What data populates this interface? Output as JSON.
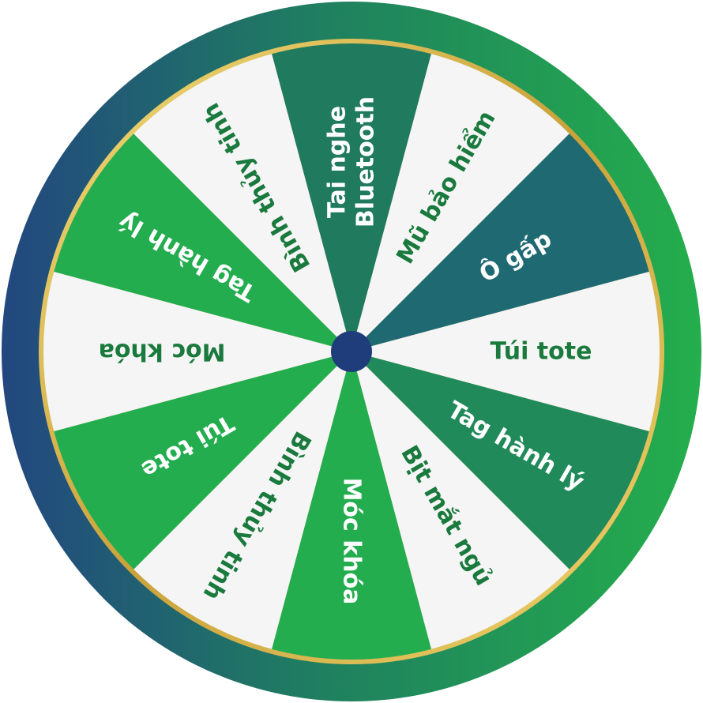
{
  "wheel": {
    "segments": [
      {
        "label": [
          "Tai nghe",
          "Bluetooth"
        ],
        "fill": "#1f7a5e",
        "text_color": "#ffffff"
      },
      {
        "label": [
          "Mũ bảo hiểm"
        ],
        "fill": "#f5f5f5",
        "text_color": "#1a7a3d"
      },
      {
        "label": [
          "Ô gấp"
        ],
        "fill": "#1f6a72",
        "text_color": "#ffffff"
      },
      {
        "label": [
          "Túi tote"
        ],
        "fill": "#f5f5f5",
        "text_color": "#1a7a3d"
      },
      {
        "label": [
          "Tag hành lý"
        ],
        "fill": "#218a5a",
        "text_color": "#ffffff"
      },
      {
        "label": [
          "Bịt mắt ngủ"
        ],
        "fill": "#f5f5f5",
        "text_color": "#1a7a3d"
      },
      {
        "label": [
          "Móc khóa"
        ],
        "fill": "#23ad4f",
        "text_color": "#ffffff"
      },
      {
        "label": [
          "Bình thủy tinh"
        ],
        "fill": "#f5f5f5",
        "text_color": "#1a7a3d"
      },
      {
        "label": [
          "Túi tote"
        ],
        "fill": "#23ad4f",
        "text_color": "#ffffff"
      },
      {
        "label": [
          "Móc khóa"
        ],
        "fill": "#f5f5f5",
        "text_color": "#1a7a3d"
      },
      {
        "label": [
          "Tag hành lý"
        ],
        "fill": "#23ad4f",
        "text_color": "#ffffff"
      },
      {
        "label": [
          "Bình thủy tinh"
        ],
        "fill": "#f5f5f5",
        "text_color": "#1a7a3d"
      }
    ],
    "colors": {
      "rim_blue": "#22477f",
      "rim_green": "#24ae4c",
      "gold": "#d9b64a",
      "hub": "#1f3d7a"
    }
  }
}
